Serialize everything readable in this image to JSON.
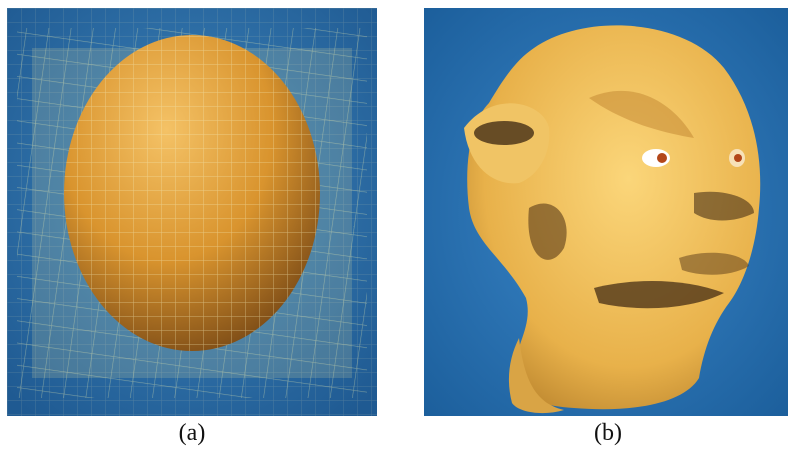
{
  "figure": {
    "panels": [
      {
        "id": "a",
        "caption": "(a)",
        "depicts": "sphere-in-lattice",
        "colors": {
          "background": "#2a6aa3",
          "object": "#e2a23c",
          "lattice": "#e8e7a6"
        }
      },
      {
        "id": "b",
        "caption": "(b)",
        "depicts": "sculpted-head",
        "colors": {
          "background": "#2c76b8",
          "object": "#f2c15a",
          "shadow": "#3a2410"
        }
      }
    ]
  }
}
